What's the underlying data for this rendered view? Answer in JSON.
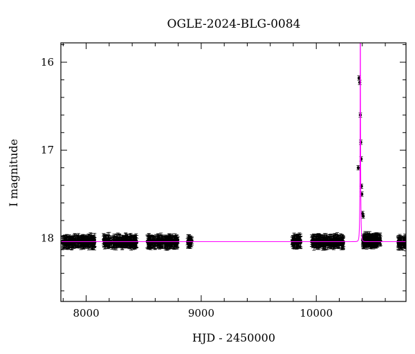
{
  "chart_data": {
    "type": "scatter",
    "title": "OGLE-2024-BLG-0084",
    "xlabel": "HJD - 2450000",
    "ylabel": "I magnitude",
    "xlim": [
      7780,
      10780
    ],
    "ylim": [
      18.72,
      15.78
    ],
    "y_inverted": true,
    "x_ticks": [
      8000,
      9000,
      10000
    ],
    "x_tick_labels": [
      "8000",
      "9000",
      "10000"
    ],
    "y_ticks": [
      16,
      17,
      18
    ],
    "y_tick_labels": [
      "16",
      "17",
      "18"
    ],
    "grid": false,
    "legend": "none",
    "colors": {
      "data": "#000000",
      "model": "#ff00ff",
      "frame": "#000000"
    },
    "series": [
      {
        "kind": "points_with_errorbars",
        "baseline_mag": 18.04,
        "typical_err": 0.06,
        "seasons": [
          {
            "x_range": [
              7790,
              8080
            ],
            "mag": 18.04
          },
          {
            "x_range": [
              8150,
              8440
            ],
            "mag": 18.04
          },
          {
            "x_range": [
              8530,
              8800
            ],
            "mag": 18.04
          },
          {
            "x_range": [
              8880,
              8920
            ],
            "mag": 18.04
          },
          {
            "x_range": [
              9790,
              9870
            ],
            "mag": 18.04
          },
          {
            "x_range": [
              9960,
              10240
            ],
            "mag": 18.04
          },
          {
            "x_range": [
              10420,
              10560
            ],
            "mag": 18.02
          },
          {
            "x_range": [
              10710,
              10780
            ],
            "mag": 18.05
          }
        ],
        "peak_points": [
          {
            "x": 10365,
            "y": 17.2
          },
          {
            "x": 10372,
            "y": 16.18
          },
          {
            "x": 10378,
            "y": 16.23
          },
          {
            "x": 10383,
            "y": 16.6
          },
          {
            "x": 10387,
            "y": 16.91
          },
          {
            "x": 10390,
            "y": 17.1
          },
          {
            "x": 10393,
            "y": 17.41
          },
          {
            "x": 10396,
            "y": 17.5
          },
          {
            "x": 10402,
            "y": 17.72
          },
          {
            "x": 10408,
            "y": 17.75
          }
        ]
      },
      {
        "kind": "model_curve",
        "baseline_mag": 18.04,
        "t0": 10383,
        "tE": 6,
        "u0": 0.03
      }
    ]
  }
}
